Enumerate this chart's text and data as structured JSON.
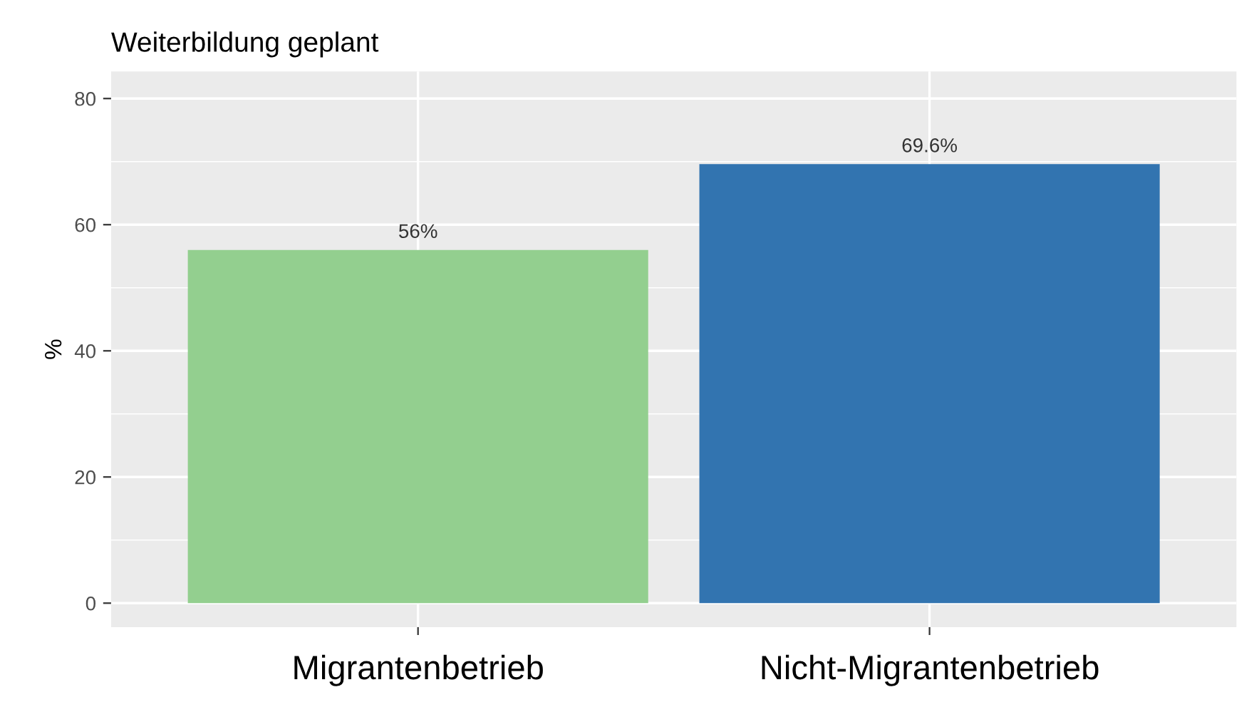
{
  "chart_data": {
    "type": "bar",
    "title": "Weiterbildung geplant",
    "ylabel": "%",
    "categories": [
      "Migrantenbetrieb",
      "Nicht-Migrantenbetrieb"
    ],
    "values": [
      56,
      69.6
    ],
    "colors": [
      "#93cf8f",
      "#3274b0"
    ],
    "value_labels": [
      "56%",
      "69.6%"
    ],
    "ylim": [
      -3.8,
      84.3
    ],
    "yticks": [
      0,
      20,
      40,
      60,
      80
    ],
    "grid": true
  }
}
